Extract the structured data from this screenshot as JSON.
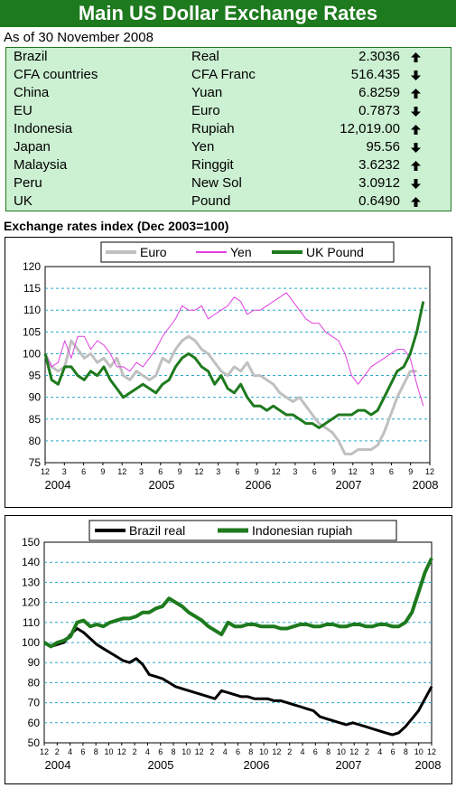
{
  "header": {
    "title": "Main US Dollar Exchange Rates"
  },
  "as_of": "As of 30 November 2008",
  "rates": [
    {
      "country": "Brazil",
      "currency": "Real",
      "value": "2.3036",
      "direction": "up"
    },
    {
      "country": "CFA countries",
      "currency": "CFA Franc",
      "value": "516.435",
      "direction": "down"
    },
    {
      "country": "China",
      "currency": "Yuan",
      "value": "6.8259",
      "direction": "up"
    },
    {
      "country": "EU",
      "currency": "Euro",
      "value": "0.7873",
      "direction": "down"
    },
    {
      "country": "Indonesia",
      "currency": "Rupiah",
      "value": "12,019.00",
      "direction": "up"
    },
    {
      "country": "Japan",
      "currency": "Yen",
      "value": "95.56",
      "direction": "down"
    },
    {
      "country": "Malaysia",
      "currency": "Ringgit",
      "value": "3.6232",
      "direction": "up"
    },
    {
      "country": "Peru",
      "currency": "New Sol",
      "value": "3.0912",
      "direction": "down"
    },
    {
      "country": "UK",
      "currency": "Pound",
      "value": "0.6490",
      "direction": "up"
    }
  ],
  "chart_title": "Exchange rates index (Dec 2003=100)",
  "chart_data": [
    {
      "type": "line",
      "title": "Exchange rates index (Dec 2003=100)",
      "ylim": [
        75,
        120
      ],
      "yticks": [
        75,
        80,
        85,
        90,
        95,
        100,
        105,
        110,
        115,
        120
      ],
      "xlim": [
        0,
        59
      ],
      "month_ticks": [
        "12",
        "3",
        "6",
        "9",
        "12",
        "3",
        "6",
        "9",
        "12",
        "3",
        "6",
        "9",
        "12",
        "3",
        "6",
        "9",
        "12",
        "3",
        "6",
        "9",
        "12"
      ],
      "year_labels": [
        "2004",
        "2005",
        "2006",
        "2007",
        "2008"
      ],
      "grid": true,
      "legend": "top",
      "series": [
        {
          "name": "Euro",
          "color": "#c0c0c0",
          "values": [
            100,
            97,
            96,
            97,
            103,
            101,
            99,
            100,
            98,
            99,
            97,
            99,
            95,
            94,
            96,
            95,
            94,
            95,
            99,
            98,
            101,
            103,
            104,
            103,
            101,
            100,
            98,
            96,
            95,
            97,
            96,
            98,
            95,
            95,
            94,
            93,
            91,
            90,
            89,
            90,
            88,
            86,
            84,
            83,
            82,
            80,
            77,
            77,
            78,
            78,
            78,
            79,
            82,
            86,
            90,
            93,
            96,
            96,
            null,
            null
          ]
        },
        {
          "name": "Yen",
          "color": "#e040e0",
          "values": [
            100,
            97,
            98,
            103,
            99,
            104,
            104,
            101,
            103,
            102,
            100,
            97,
            97,
            96,
            98,
            97,
            99,
            101,
            104,
            106,
            108,
            111,
            110,
            110,
            111,
            108,
            109,
            110,
            111,
            113,
            112,
            109,
            110,
            110,
            111,
            112,
            113,
            114,
            112,
            110,
            108,
            107,
            107,
            105,
            104,
            103,
            100,
            95,
            93,
            95,
            97,
            98,
            99,
            100,
            101,
            101,
            99,
            93,
            88,
            null
          ]
        },
        {
          "name": "UK Pound",
          "color": "#1e7a1e",
          "values": [
            100,
            94,
            93,
            97,
            97,
            95,
            94,
            96,
            95,
            97,
            94,
            92,
            90,
            91,
            92,
            93,
            92,
            91,
            93,
            94,
            97,
            99,
            100,
            99,
            97,
            96,
            93,
            95,
            92,
            91,
            93,
            90,
            88,
            88,
            87,
            88,
            87,
            86,
            86,
            85,
            84,
            84,
            83,
            84,
            85,
            86,
            86,
            86,
            87,
            87,
            86,
            87,
            90,
            93,
            96,
            97,
            100,
            105,
            112,
            null
          ]
        }
      ]
    },
    {
      "type": "line",
      "ylim": [
        50,
        150
      ],
      "yticks": [
        50,
        60,
        70,
        80,
        90,
        100,
        110,
        120,
        130,
        140,
        150
      ],
      "xlim": [
        0,
        59
      ],
      "month_ticks": [
        "12",
        "2",
        "4",
        "6",
        "8",
        "10",
        "12",
        "2",
        "4",
        "6",
        "8",
        "10",
        "12",
        "2",
        "4",
        "6",
        "8",
        "10",
        "12",
        "2",
        "4",
        "6",
        "8",
        "10",
        "12",
        "2",
        "4",
        "6",
        "8",
        "10",
        "12"
      ],
      "year_labels": [
        "2004",
        "2005",
        "2006",
        "2007",
        "2008"
      ],
      "grid": true,
      "legend": "top",
      "series": [
        {
          "name": "Brazil real",
          "color": "#000000",
          "values": [
            100,
            98,
            99,
            100,
            104,
            107,
            105,
            102,
            99,
            97,
            95,
            93,
            91,
            90,
            92,
            89,
            84,
            83,
            82,
            80,
            78,
            77,
            76,
            75,
            74,
            73,
            72,
            76,
            75,
            74,
            73,
            73,
            72,
            72,
            72,
            71,
            71,
            70,
            69,
            68,
            67,
            66,
            63,
            62,
            61,
            60,
            59,
            60,
            59,
            58,
            57,
            56,
            55,
            54,
            55,
            58,
            62,
            66,
            72,
            78
          ]
        },
        {
          "name": "Indonesian rupiah",
          "color": "#1e7a1e",
          "values": [
            100,
            98,
            100,
            101,
            103,
            110,
            111,
            108,
            109,
            108,
            110,
            111,
            112,
            112,
            113,
            115,
            115,
            117,
            118,
            122,
            120,
            118,
            115,
            113,
            111,
            108,
            106,
            104,
            110,
            108,
            108,
            109,
            109,
            108,
            108,
            108,
            107,
            107,
            108,
            109,
            109,
            108,
            108,
            109,
            109,
            108,
            108,
            109,
            109,
            108,
            108,
            109,
            109,
            108,
            108,
            110,
            115,
            125,
            135,
            142
          ]
        }
      ]
    }
  ]
}
